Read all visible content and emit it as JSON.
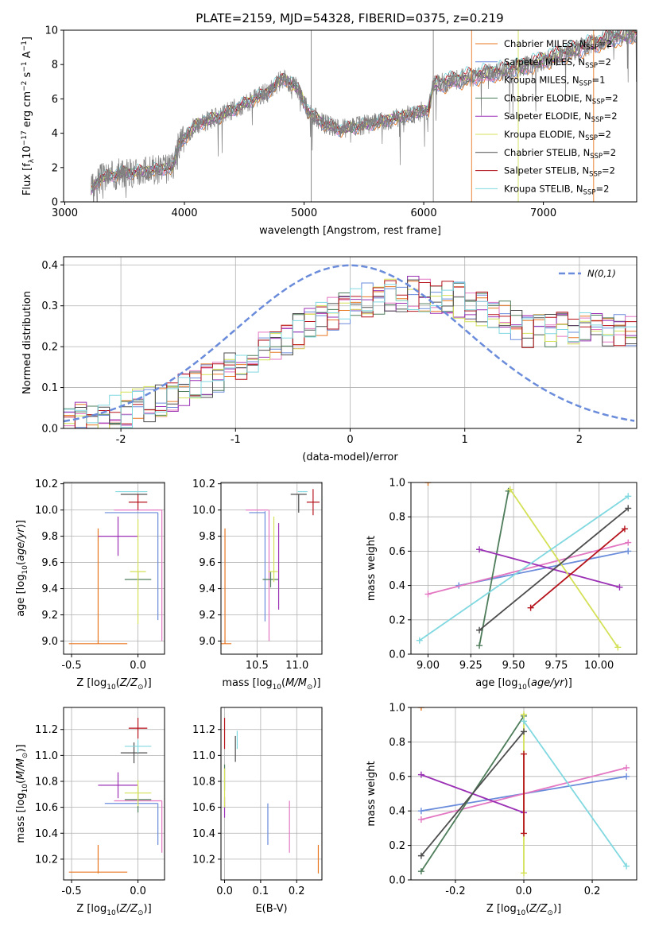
{
  "title": "PLATE=2159, MJD=54328, FIBERID=0375, z=0.219",
  "colors": {
    "data": "#808080",
    "chabrier_miles": "#e87722",
    "salpeter_miles": "#6a8cdb",
    "kroupa_miles": "#e377c2",
    "chabrier_elodie": "#4e7d5b",
    "salpeter_elodie": "#9b30b5",
    "kroupa_elodie": "#d4e157",
    "chabrier_stelib": "#4d4d4d",
    "salpeter_stelib": "#b5121b",
    "kroupa_stelib": "#80d8e0",
    "normal": "#6a8cdb"
  },
  "chart_data": [
    {
      "id": "spectrum",
      "type": "line",
      "xlabel": "wavelength [Angstrom, rest frame]",
      "ylabel": "Flux [f_λ10^-17 erg cm^-2 s^-1 A^-1]",
      "xlim": [
        2990,
        7780
      ],
      "ylim": [
        0,
        10
      ],
      "xticks": [
        3000,
        4000,
        5000,
        6000,
        7000
      ],
      "yticks": [
        0,
        2,
        4,
        6,
        8,
        10
      ],
      "legend_position": "top-right",
      "continuum_knots": {
        "x": [
          3220,
          3300,
          3500,
          3700,
          3900,
          3950,
          4100,
          4300,
          4500,
          4700,
          4820,
          4950,
          5030,
          5150,
          5300,
          5600,
          5900,
          6040,
          6080,
          6400,
          6800,
          7200,
          7550,
          7780
        ],
        "y": [
          0.7,
          1.4,
          1.7,
          1.8,
          2.0,
          3.3,
          4.5,
          5.0,
          5.7,
          6.4,
          7.2,
          6.6,
          5.3,
          4.6,
          4.2,
          4.6,
          5.1,
          5.4,
          6.8,
          7.3,
          7.8,
          8.7,
          9.5,
          9.8
        ]
      },
      "series": [
        {
          "name": "Chabrier MILES",
          "nssp": "2",
          "color_key": "chabrier_miles"
        },
        {
          "name": "Salpeter MILES",
          "nssp": "2",
          "color_key": "salpeter_miles"
        },
        {
          "name": "Kroupa MILES",
          "nssp": "1",
          "color_key": "kroupa_miles"
        },
        {
          "name": "Chabrier ELODIE",
          "nssp": "2",
          "color_key": "chabrier_elodie"
        },
        {
          "name": "Salpeter ELODIE",
          "nssp": "2",
          "color_key": "salpeter_elodie"
        },
        {
          "name": "Kroupa ELODIE",
          "nssp": "2",
          "color_key": "kroupa_elodie"
        },
        {
          "name": "Chabrier STELIB",
          "nssp": "2",
          "color_key": "chabrier_stelib"
        },
        {
          "name": "Salpeter STELIB",
          "nssp": "2",
          "color_key": "salpeter_stelib"
        },
        {
          "name": "Kroupa STELIB",
          "nssp": "2",
          "color_key": "kroupa_stelib"
        }
      ]
    },
    {
      "id": "residuals",
      "type": "line",
      "xlabel": "(data-model)/error",
      "ylabel": "Normed distribution",
      "xlim": [
        -2.5,
        2.5
      ],
      "ylim": [
        0,
        0.42
      ],
      "xticks": [
        -2,
        -1,
        0,
        1,
        2
      ],
      "yticks": [
        0.0,
        0.1,
        0.2,
        0.3,
        0.4
      ],
      "reference_label": "N(0,1)",
      "histogram_bins": 50,
      "histogram_mean": 0.55,
      "histogram_sigma": 1.0,
      "histogram_peak": 0.33
    },
    {
      "id": "age_vs_Z",
      "type": "scatter",
      "xlabel": "Z [log10(Z/Z⊙)]",
      "ylabel": "age [log10(age/yr)]",
      "xlim": [
        -0.56,
        0.2
      ],
      "ylim": [
        8.9,
        10.21
      ],
      "xticks": [
        -0.5,
        0.0
      ],
      "yticks": [
        9.0,
        9.2,
        9.4,
        9.6,
        9.8,
        10.0,
        10.2
      ],
      "points": [
        {
          "c": "chabrier_miles",
          "x": -0.3,
          "xerr": 0.22,
          "y": 8.98,
          "yerr": 0.0
        },
        {
          "c": "chabrier_miles",
          "x": -0.3,
          "xerr": 0.0,
          "y": 9.42,
          "yerr": 0.44
        },
        {
          "c": "salpeter_miles",
          "x": -0.05,
          "xerr": 0.2,
          "y": 9.98,
          "yerr": 0.0
        },
        {
          "c": "salpeter_miles",
          "x": 0.15,
          "xerr": 0.0,
          "y": 9.57,
          "yerr": 0.41
        },
        {
          "c": "kroupa_miles",
          "x": 0.0,
          "xerr": 0.18,
          "y": 10.0,
          "yerr": 0.0
        },
        {
          "c": "kroupa_miles",
          "x": 0.18,
          "xerr": 0.0,
          "y": 9.5,
          "yerr": 0.5
        },
        {
          "c": "chabrier_elodie",
          "x": 0.0,
          "xerr": 0.1,
          "y": 9.47,
          "yerr": 0.06
        },
        {
          "c": "salpeter_elodie",
          "x": -0.15,
          "xerr": 0.15,
          "y": 9.8,
          "yerr": 0.15
        },
        {
          "c": "kroupa_elodie",
          "x": -0.0,
          "xerr": 0.0,
          "y": 9.53,
          "yerr": 0.4
        },
        {
          "c": "kroupa_elodie",
          "x": 0.0,
          "xerr": 0.06,
          "y": 9.53,
          "yerr": 0.0
        },
        {
          "c": "chabrier_stelib",
          "x": -0.03,
          "xerr": 0.1,
          "y": 10.12,
          "yerr": 0.0
        },
        {
          "c": "salpeter_stelib",
          "x": 0.0,
          "xerr": 0.07,
          "y": 10.06,
          "yerr": 0.06
        },
        {
          "c": "kroupa_stelib",
          "x": -0.05,
          "xerr": 0.12,
          "y": 10.14,
          "yerr": 0.0
        }
      ]
    },
    {
      "id": "age_vs_mass",
      "type": "scatter",
      "xlabel": "mass [log10(M/M⊙)]",
      "ylabel": "",
      "xlim": [
        10.05,
        11.31
      ],
      "ylim": [
        8.9,
        10.21
      ],
      "xticks": [
        10.5,
        11.0
      ],
      "yticks": [
        9.0,
        9.2,
        9.4,
        9.6,
        9.8,
        10.0,
        10.2
      ],
      "points": [
        {
          "c": "chabrier_miles",
          "x": 10.1,
          "xerr": 0.0,
          "y": 9.42,
          "yerr": 0.44
        },
        {
          "c": "chabrier_miles",
          "x": 10.1,
          "xerr": 0.08,
          "y": 8.98,
          "yerr": 0.0
        },
        {
          "c": "salpeter_miles",
          "x": 10.6,
          "xerr": 0.0,
          "y": 9.57,
          "yerr": 0.42
        },
        {
          "c": "salpeter_miles",
          "x": 10.5,
          "xerr": 0.1,
          "y": 9.98,
          "yerr": 0.0
        },
        {
          "c": "kroupa_miles",
          "x": 10.65,
          "xerr": 0.0,
          "y": 9.5,
          "yerr": 0.5
        },
        {
          "c": "kroupa_miles",
          "x": 10.5,
          "xerr": 0.14,
          "y": 10.0,
          "yerr": 0.0
        },
        {
          "c": "chabrier_elodie",
          "x": 10.67,
          "xerr": 0.1,
          "y": 9.47,
          "yerr": 0.06
        },
        {
          "c": "salpeter_elodie",
          "x": 10.77,
          "xerr": 0.0,
          "y": 9.57,
          "yerr": 0.33
        },
        {
          "c": "kroupa_elodie",
          "x": 10.71,
          "xerr": 0.0,
          "y": 9.7,
          "yerr": 0.25
        },
        {
          "c": "kroupa_elodie",
          "x": 10.7,
          "xerr": 0.06,
          "y": 9.53,
          "yerr": 0.0
        },
        {
          "c": "chabrier_stelib",
          "x": 11.02,
          "xerr": 0.0,
          "y": 10.05,
          "yerr": 0.07
        },
        {
          "c": "chabrier_stelib",
          "x": 11.02,
          "xerr": 0.1,
          "y": 10.12,
          "yerr": 0.0
        },
        {
          "c": "salpeter_stelib",
          "x": 11.2,
          "xerr": 0.0,
          "y": 10.06,
          "yerr": 0.1
        },
        {
          "c": "salpeter_stelib",
          "x": 11.2,
          "xerr": 0.08,
          "y": 10.06,
          "yerr": 0.0
        },
        {
          "c": "kroupa_stelib",
          "x": 11.07,
          "xerr": 0.06,
          "y": 10.14,
          "yerr": 0.0
        }
      ]
    },
    {
      "id": "weight_vs_age",
      "type": "line",
      "xlabel": "age [log10(age/yr)]",
      "ylabel": "mass weight",
      "xlim": [
        8.9,
        10.22
      ],
      "ylim": [
        0,
        1.0
      ],
      "xticks": [
        9.0,
        9.25,
        9.5,
        9.75,
        10.0
      ],
      "yticks": [
        0.0,
        0.2,
        0.4,
        0.6,
        0.8,
        1.0
      ],
      "series": [
        {
          "c": "chabrier_miles",
          "x": [
            9.0
          ],
          "y": [
            1.0
          ]
        },
        {
          "c": "salpeter_miles",
          "x": [
            9.18,
            10.17
          ],
          "y": [
            0.4,
            0.6
          ]
        },
        {
          "c": "kroupa_miles",
          "x": [
            9.0,
            10.17
          ],
          "y": [
            0.35,
            0.65
          ]
        },
        {
          "c": "chabrier_elodie",
          "x": [
            9.3,
            9.47
          ],
          "y": [
            0.05,
            0.95
          ]
        },
        {
          "c": "salpeter_elodie",
          "x": [
            9.3,
            10.12
          ],
          "y": [
            0.61,
            0.39
          ]
        },
        {
          "c": "kroupa_elodie",
          "x": [
            9.48,
            10.11
          ],
          "y": [
            0.96,
            0.04
          ]
        },
        {
          "c": "chabrier_stelib",
          "x": [
            9.3,
            10.17
          ],
          "y": [
            0.14,
            0.85
          ]
        },
        {
          "c": "salpeter_stelib",
          "x": [
            9.6,
            10.15
          ],
          "y": [
            0.27,
            0.73
          ]
        },
        {
          "c": "kroupa_stelib",
          "x": [
            8.95,
            10.17
          ],
          "y": [
            0.08,
            0.92
          ]
        }
      ]
    },
    {
      "id": "mass_vs_Z",
      "type": "scatter",
      "xlabel": "Z [log10(Z/Z⊙)]",
      "ylabel": "mass [log10(M/M⊙)]",
      "xlim": [
        -0.56,
        0.2
      ],
      "ylim": [
        10.04,
        11.37
      ],
      "xticks": [
        -0.5,
        0.0
      ],
      "yticks": [
        10.2,
        10.4,
        10.6,
        10.8,
        11.0,
        11.2
      ],
      "points": [
        {
          "c": "chabrier_miles",
          "x": -0.3,
          "xerr": 0.22,
          "y": 10.1,
          "yerr": 0.0
        },
        {
          "c": "chabrier_miles",
          "x": -0.3,
          "xerr": 0.0,
          "y": 10.2,
          "yerr": 0.11
        },
        {
          "c": "salpeter_miles",
          "x": -0.05,
          "xerr": 0.2,
          "y": 10.63,
          "yerr": 0.0
        },
        {
          "c": "salpeter_miles",
          "x": 0.15,
          "xerr": 0.0,
          "y": 10.47,
          "yerr": 0.16
        },
        {
          "c": "kroupa_miles",
          "x": 0.0,
          "xerr": 0.18,
          "y": 10.65,
          "yerr": 0.0
        },
        {
          "c": "kroupa_miles",
          "x": 0.18,
          "xerr": 0.0,
          "y": 10.45,
          "yerr": 0.2
        },
        {
          "c": "chabrier_elodie",
          "x": 0.0,
          "xerr": 0.1,
          "y": 10.66,
          "yerr": 0.1
        },
        {
          "c": "salpeter_elodie",
          "x": -0.15,
          "xerr": 0.15,
          "y": 10.77,
          "yerr": 0.1
        },
        {
          "c": "kroupa_elodie",
          "x": 0.0,
          "xerr": 0.1,
          "y": 10.71,
          "yerr": 0.1
        },
        {
          "c": "chabrier_stelib",
          "x": -0.03,
          "xerr": 0.1,
          "y": 11.02,
          "yerr": 0.08
        },
        {
          "c": "salpeter_stelib",
          "x": 0.0,
          "xerr": 0.07,
          "y": 11.21,
          "yerr": 0.08
        },
        {
          "c": "kroupa_stelib",
          "x": 0.0,
          "xerr": 0.1,
          "y": 11.07,
          "yerr": 0.05
        }
      ]
    },
    {
      "id": "mass_vs_EBV",
      "type": "scatter",
      "xlabel": "E(B-V)",
      "ylabel": "",
      "xlim": [
        -0.01,
        0.27
      ],
      "ylim": [
        10.04,
        11.37
      ],
      "xticks": [
        0.0,
        0.1,
        0.2
      ],
      "yticks": [
        10.2,
        10.4,
        10.6,
        10.8,
        11.0,
        11.2
      ],
      "points": [
        {
          "c": "chabrier_miles",
          "x": 0.26,
          "y": 10.2,
          "yerr": 0.11
        },
        {
          "c": "salpeter_miles",
          "x": 0.12,
          "y": 10.47,
          "yerr": 0.16
        },
        {
          "c": "kroupa_miles",
          "x": 0.18,
          "y": 10.45,
          "yerr": 0.2
        },
        {
          "c": "chabrier_elodie",
          "x": 0.0,
          "y": 10.83,
          "yerr": 0.1
        },
        {
          "c": "salpeter_elodie",
          "x": 0.0,
          "y": 10.6,
          "yerr": 0.08
        },
        {
          "c": "kroupa_elodie",
          "x": 0.0,
          "y": 10.75,
          "yerr": 0.15
        },
        {
          "c": "chabrier_stelib",
          "x": 0.03,
          "y": 11.05,
          "yerr": 0.1
        },
        {
          "c": "salpeter_stelib",
          "x": 0.0,
          "y": 11.17,
          "yerr": 0.12
        },
        {
          "c": "kroupa_stelib",
          "x": 0.035,
          "y": 11.12,
          "yerr": 0.07
        }
      ]
    },
    {
      "id": "weight_vs_Z",
      "type": "line",
      "xlabel": "Z [log10(Z/Z⊙)]",
      "ylabel": "mass weight",
      "xlim": [
        -0.33,
        0.33
      ],
      "ylim": [
        0,
        1.0
      ],
      "xticks": [
        -0.2,
        0.0,
        0.2
      ],
      "yticks": [
        0.0,
        0.2,
        0.4,
        0.6,
        0.8,
        1.0
      ],
      "series": [
        {
          "c": "chabrier_miles",
          "x": [
            -0.3
          ],
          "y": [
            1.0
          ]
        },
        {
          "c": "salpeter_miles",
          "x": [
            -0.3,
            0.3
          ],
          "y": [
            0.4,
            0.6
          ]
        },
        {
          "c": "kroupa_miles",
          "x": [
            -0.3,
            0.3
          ],
          "y": [
            0.35,
            0.65
          ]
        },
        {
          "c": "chabrier_elodie",
          "x": [
            -0.3,
            0.0
          ],
          "y": [
            0.05,
            0.95
          ]
        },
        {
          "c": "salpeter_elodie",
          "x": [
            -0.3,
            0.0
          ],
          "y": [
            0.61,
            0.39
          ]
        },
        {
          "c": "kroupa_elodie",
          "x": [
            0.0,
            0.0
          ],
          "y": [
            0.96,
            0.04
          ]
        },
        {
          "c": "chabrier_stelib",
          "x": [
            -0.3,
            0.0
          ],
          "y": [
            0.14,
            0.86
          ]
        },
        {
          "c": "salpeter_stelib",
          "x": [
            0.0,
            0.0
          ],
          "y": [
            0.27,
            0.73
          ]
        },
        {
          "c": "kroupa_stelib",
          "x": [
            0.0,
            0.3
          ],
          "y": [
            0.92,
            0.08
          ]
        }
      ]
    }
  ]
}
